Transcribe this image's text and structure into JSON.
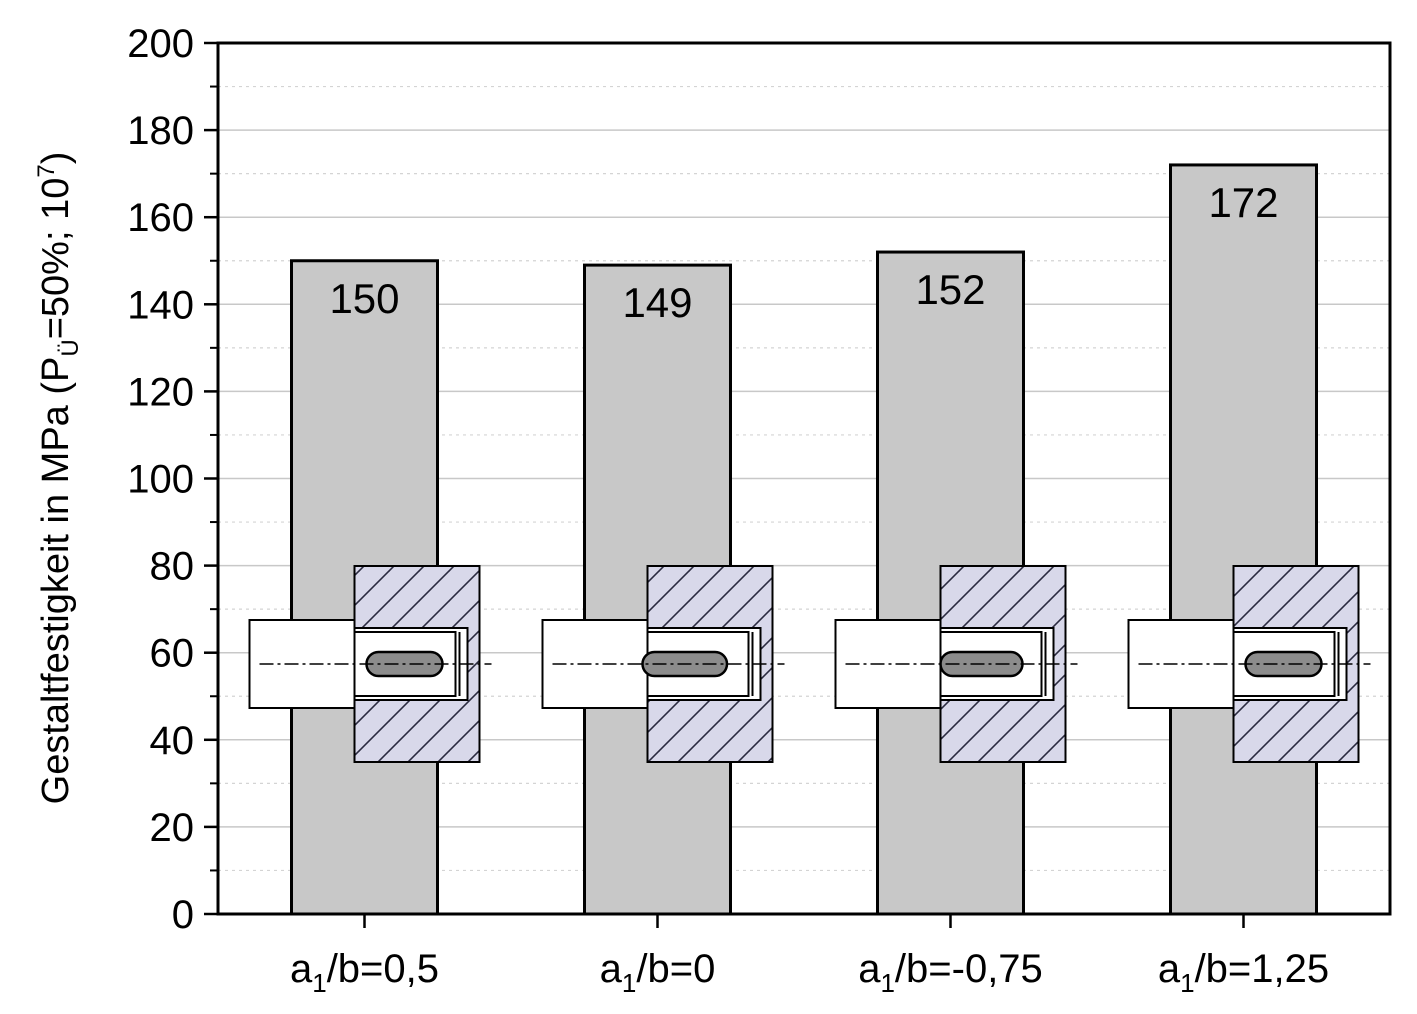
{
  "chart_data": {
    "type": "bar",
    "categories": [
      {
        "main": "a",
        "sub": "1",
        "rest": "/b=0,5"
      },
      {
        "main": "a",
        "sub": "1",
        "rest": "/b=0"
      },
      {
        "main": "a",
        "sub": "1",
        "rest": "/b=-0,75"
      },
      {
        "main": "a",
        "sub": "1",
        "rest": "/b=1,25"
      }
    ],
    "values": [
      150,
      149,
      152,
      172
    ],
    "value_labels": [
      "150",
      "149",
      "152",
      "172"
    ],
    "ylabel": {
      "prefix": "Gestaltfestigkeit in MPa (P",
      "sub": "Ü",
      "middle": "=50%; 10",
      "sup": "7",
      "suffix": ")"
    },
    "ylim": [
      0,
      200
    ],
    "yticks": [
      "0",
      "20",
      "40",
      "60",
      "80",
      "100",
      "120",
      "140",
      "160",
      "180",
      "200"
    ],
    "grid": "horizontal",
    "colors": {
      "bar_fill": "#c8c8c8",
      "bar_stroke": "#000000",
      "hub_fill": "#d8d8ea",
      "grid_major": "#c8c8c8",
      "grid_minor": "#d4d4d4"
    },
    "inset_icons": [
      "shaft-hub-connection-icon",
      "shaft-hub-connection-icon",
      "shaft-hub-connection-icon",
      "shaft-hub-connection-icon"
    ],
    "inset_key_shift": [
      0,
      0.85,
      0.6,
      0
    ]
  }
}
